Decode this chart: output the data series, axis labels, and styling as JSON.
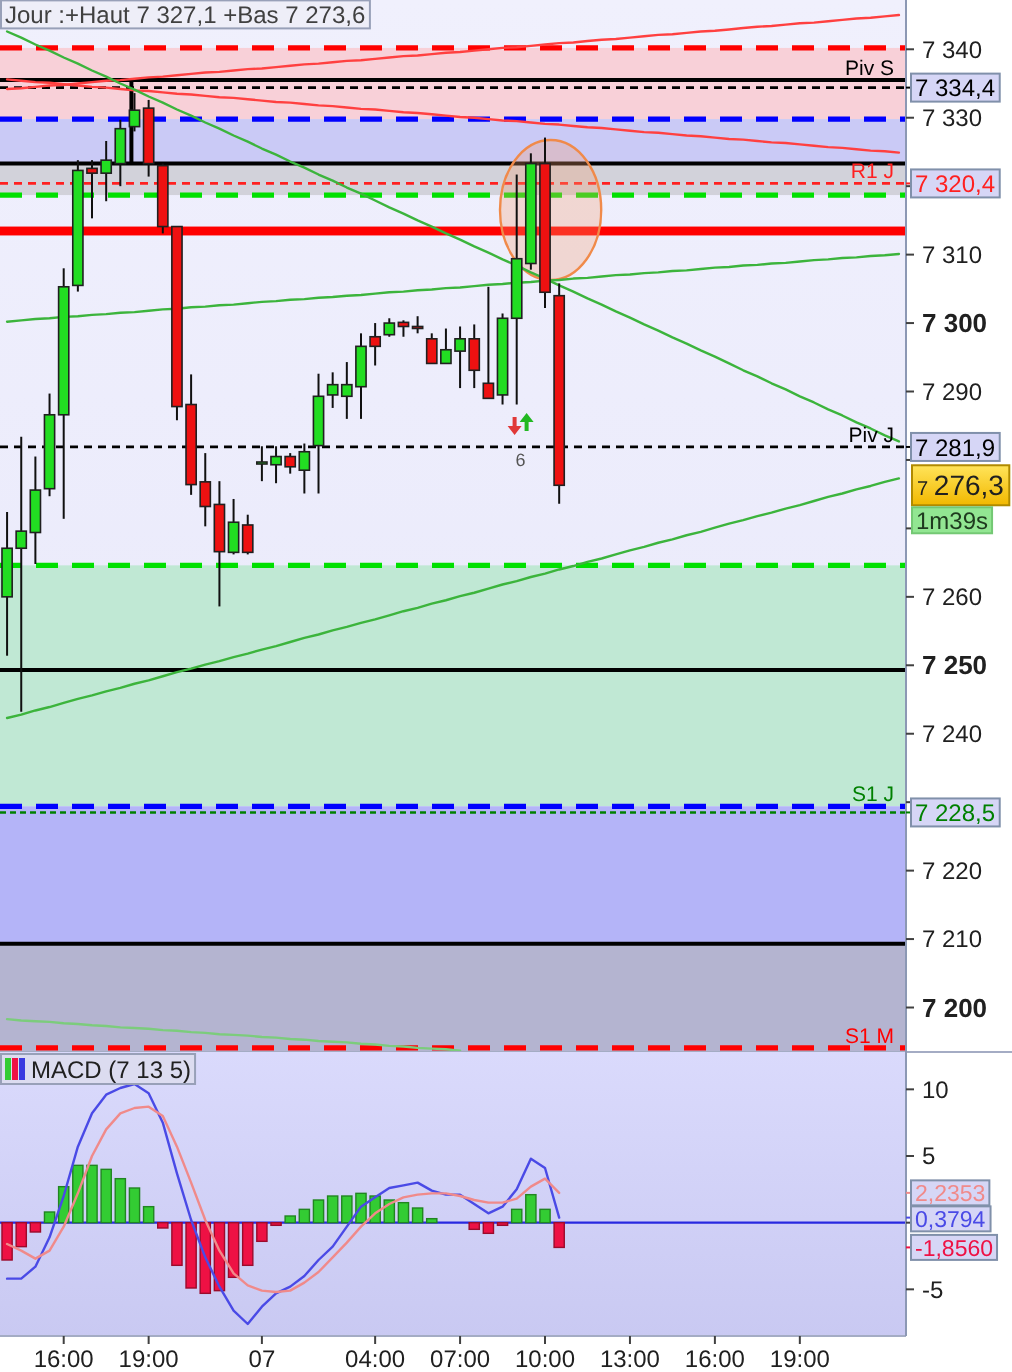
{
  "chart_data": [
    {
      "type": "candlestick",
      "title": "Jour :+Haut 7 327,1 +Bas 7 273,6",
      "categories": [
        null,
        null,
        null,
        null,
        null,
        null,
        null,
        null,
        null,
        null,
        null,
        null,
        null,
        null,
        null,
        null,
        null,
        null,
        null,
        null,
        null,
        null,
        null,
        null,
        null,
        null,
        null,
        null,
        null,
        null,
        null,
        null,
        null,
        null,
        null,
        null,
        null,
        null,
        null,
        null,
        null,
        null,
        null,
        null,
        null,
        null,
        null,
        null,
        null,
        null,
        null,
        null,
        null,
        null,
        null,
        null,
        null,
        null,
        null,
        null,
        null,
        null,
        null,
        null
      ],
      "ohlc": [
        [
          7260.0,
          7272.4,
          7251.4,
          7267.1
        ],
        [
          7267.1,
          7283.4,
          7243.2,
          7269.6
        ],
        [
          7269.4,
          7280.5,
          7264.8,
          7275.6
        ],
        [
          7275.8,
          7289.7,
          7274.7,
          7286.6
        ],
        [
          7286.6,
          7308.0,
          7271.4,
          7305.3
        ],
        [
          7305.5,
          7323.8,
          7304.6,
          7322.3
        ],
        [
          7322.6,
          7323.8,
          7315.3,
          7321.9
        ],
        [
          7321.9,
          7326.6,
          7317.8,
          7323.8
        ],
        [
          7323.3,
          7329.7,
          7320.0,
          7328.4
        ],
        [
          7328.7,
          7333.6,
          7328.0,
          7331.1
        ],
        [
          7331.4,
          7332.6,
          7321.4,
          7323.3
        ],
        [
          7323.0,
          7323.3,
          7313.1,
          7314.1
        ],
        [
          7314.1,
          7314.1,
          7285.8,
          7287.8
        ],
        [
          7288.1,
          7292.5,
          7274.9,
          7276.4
        ],
        [
          7276.8,
          7281.0,
          7270.3,
          7273.2
        ],
        [
          7273.5,
          7276.9,
          7258.6,
          7266.6
        ],
        [
          7266.5,
          7274.3,
          7266.2,
          7270.9
        ],
        [
          7270.5,
          7272.0,
          7266.2,
          7266.5
        ],
        [
          7279.7,
          7282.0,
          7276.9,
          7279.7
        ],
        [
          7279.3,
          7282.0,
          7276.6,
          7280.5
        ],
        [
          7280.5,
          7281.0,
          7278.0,
          7279.0
        ],
        [
          7278.5,
          7282.4,
          7275.1,
          7281.2
        ],
        [
          7282.1,
          7292.6,
          7275.1,
          7289.3
        ],
        [
          7289.5,
          7292.8,
          7287.6,
          7291.0
        ],
        [
          7289.3,
          7294.3,
          7286.0,
          7291.0
        ],
        [
          7290.7,
          7298.5,
          7286.0,
          7296.6
        ],
        [
          7298.0,
          7300.0,
          7293.8,
          7296.6
        ],
        [
          7298.3,
          7300.7,
          7298.0,
          7300.0
        ],
        [
          7300.1,
          7300.4,
          7298.0,
          7299.5
        ],
        [
          7299.5,
          7301.0,
          7298.5,
          7299.5
        ],
        [
          7297.7,
          7298.5,
          7294.1,
          7294.1
        ],
        [
          7294.1,
          7299.2,
          7294.1,
          7296.1
        ],
        [
          7295.9,
          7299.5,
          7290.5,
          7297.7
        ],
        [
          7297.7,
          7299.8,
          7290.5,
          7293.1
        ],
        [
          7291.2,
          7305.3,
          7289.0,
          7289.0
        ],
        [
          7289.5,
          7301.4,
          7288.1,
          7300.7
        ],
        [
          7300.7,
          7321.7,
          7288.1,
          7309.4
        ],
        [
          7308.7,
          7324.8,
          7307.8,
          7323.3
        ],
        [
          7323.3,
          7327.1,
          7302.2,
          7304.5
        ],
        [
          7304.0,
          7305.8,
          7273.6,
          7276.3
        ],
        null,
        null,
        null,
        null,
        null,
        null,
        null,
        null,
        null,
        null,
        null,
        null,
        null,
        null,
        null,
        null,
        null,
        null,
        null,
        null,
        null,
        null,
        null,
        null
      ],
      "colors": [
        "#22dd22",
        "#22dd22",
        "#22dd22",
        "#22dd22",
        "#22dd22",
        "#22dd22",
        "#ee1111",
        "#22dd22",
        "#22dd22",
        "#22dd22",
        "#ee1111",
        "#ee1111",
        "#ee1111",
        "#ee1111",
        "#ee1111",
        "#ee1111",
        "#22dd22",
        "#ee1111",
        "#22dd22",
        "#22dd22",
        "#ee1111",
        "#22dd22",
        "#22dd22",
        "#22dd22",
        "#22dd22",
        "#22dd22",
        "#ee1111",
        "#22dd22",
        "#ee1111",
        "#ee1111",
        "#ee1111",
        "#22dd22",
        "#22dd22",
        "#ee1111",
        "#ee1111",
        "#22dd22",
        "#22dd22",
        "#22dd22",
        "#ee1111",
        "#ee1111",
        null,
        null,
        null,
        null,
        null,
        null,
        null,
        null,
        null,
        null,
        null,
        null,
        null,
        null,
        null,
        null,
        null,
        null,
        null,
        null,
        null,
        null,
        null,
        null
      ],
      "series": [
        {
          "type": "line",
          "color": "#ff4040",
          "values": [
            7335.6,
            7335.4,
            7335.2,
            7335.1,
            7334.9,
            7334.7,
            7334.5,
            7334.4,
            7334.2,
            7334.0,
            7333.9,
            7333.7,
            7333.5,
            7333.4,
            7333.2,
            7333.0,
            7332.9,
            7332.7,
            7332.5,
            7332.3,
            7332.2,
            7332.0,
            7331.8,
            7331.7,
            7331.5,
            7331.3,
            7331.2,
            7331.0,
            7330.8,
            7330.7,
            7330.5,
            7330.3,
            7330.1,
            7330.0,
            7329.8,
            7329.6,
            7329.5,
            7329.3,
            7329.1,
            7329.0,
            7328.8,
            7328.6,
            7328.5,
            7328.3,
            7328.1,
            7327.9,
            7327.8,
            7327.6,
            7327.4,
            7327.3,
            7327.1,
            7326.9,
            7326.8,
            7326.6,
            7326.4,
            7326.3,
            7326.1,
            7325.9,
            7325.7,
            7325.6,
            7325.4,
            7325.2,
            7325.1,
            7324.9
          ]
        },
        {
          "type": "line",
          "color": "#ff4040",
          "values": [
            7334.2,
            7334.3,
            7334.5,
            7334.7,
            7334.8,
            7335.0,
            7335.2,
            7335.4,
            7335.5,
            7335.7,
            7335.9,
            7336.0,
            7336.2,
            7336.4,
            7336.6,
            7336.7,
            7336.9,
            7337.1,
            7337.2,
            7337.4,
            7337.6,
            7337.8,
            7337.9,
            7338.1,
            7338.3,
            7338.4,
            7338.6,
            7338.8,
            7339.0,
            7339.1,
            7339.3,
            7339.5,
            7339.6,
            7339.8,
            7340.0,
            7340.2,
            7340.3,
            7340.5,
            7340.7,
            7340.9,
            7341.0,
            7341.2,
            7341.4,
            7341.5,
            7341.7,
            7341.9,
            7342.1,
            7342.2,
            7342.4,
            7342.6,
            7342.7,
            7342.9,
            7343.1,
            7343.3,
            7343.4,
            7343.6,
            7343.8,
            7343.9,
            7344.1,
            7344.3,
            7344.5,
            7344.6,
            7344.8,
            7345.0
          ]
        },
        {
          "type": "line",
          "color": "#3cb43c",
          "values": [
            7342.6,
            7341.7,
            7340.7,
            7339.8,
            7338.8,
            7337.9,
            7336.9,
            7336.0,
            7335.0,
            7334.1,
            7333.1,
            7332.2,
            7331.2,
            7330.3,
            7329.3,
            7328.4,
            7327.4,
            7326.5,
            7325.5,
            7324.6,
            7323.6,
            7322.7,
            7321.7,
            7320.8,
            7319.8,
            7318.9,
            7317.9,
            7316.9,
            7316.0,
            7315.0,
            7314.1,
            7313.1,
            7312.2,
            7311.2,
            7310.3,
            7309.3,
            7308.4,
            7307.4,
            7306.5,
            7305.5,
            7304.6,
            7303.6,
            7302.7,
            7301.7,
            7300.8,
            7299.8,
            7298.9,
            7297.9,
            7297.0,
            7296.0,
            7295.1,
            7294.1,
            7293.1,
            7292.2,
            7291.2,
            7290.3,
            7289.3,
            7288.4,
            7287.4,
            7286.5,
            7285.5,
            7284.6,
            7283.6,
            7282.7
          ]
        },
        {
          "type": "line",
          "color": "#3cb43c",
          "values": [
            7300.2,
            7300.4,
            7300.6,
            7300.7,
            7300.9,
            7301.0,
            7301.2,
            7301.3,
            7301.5,
            7301.6,
            7301.8,
            7302.0,
            7302.1,
            7302.3,
            7302.4,
            7302.6,
            7302.7,
            7302.9,
            7303.1,
            7303.2,
            7303.4,
            7303.5,
            7303.7,
            7303.8,
            7304.0,
            7304.1,
            7304.3,
            7304.5,
            7304.6,
            7304.8,
            7304.9,
            7305.1,
            7305.2,
            7305.4,
            7305.6,
            7305.7,
            7305.9,
            7306.0,
            7306.2,
            7306.3,
            7306.5,
            7306.6,
            7306.8,
            7307.0,
            7307.1,
            7307.3,
            7307.4,
            7307.6,
            7307.7,
            7307.9,
            7308.1,
            7308.2,
            7308.4,
            7308.5,
            7308.7,
            7308.8,
            7309.0,
            7309.2,
            7309.3,
            7309.5,
            7309.6,
            7309.8,
            7309.9,
            7310.1
          ]
        },
        {
          "type": "line",
          "color": "#3cb43c",
          "values": [
            7242.3,
            7242.8,
            7243.4,
            7243.9,
            7244.5,
            7245.1,
            7245.6,
            7246.2,
            7246.7,
            7247.3,
            7247.8,
            7248.4,
            7249.0,
            7249.5,
            7250.1,
            7250.6,
            7251.2,
            7251.7,
            7252.3,
            7252.8,
            7253.4,
            7254.0,
            7254.5,
            7255.1,
            7255.6,
            7256.2,
            7256.7,
            7257.3,
            7257.9,
            7258.4,
            7259.0,
            7259.5,
            7260.1,
            7260.6,
            7261.2,
            7261.8,
            7262.3,
            7262.9,
            7263.4,
            7264.0,
            7264.5,
            7265.1,
            7265.6,
            7266.2,
            7266.8,
            7267.3,
            7267.9,
            7268.4,
            7269.0,
            7269.5,
            7270.1,
            7270.7,
            7271.2,
            7271.8,
            7272.3,
            7272.9,
            7273.4,
            7274.0,
            7274.6,
            7275.1,
            7275.7,
            7276.2,
            7276.8,
            7277.3
          ]
        },
        {
          "type": "line",
          "color": "#7ccc7c",
          "values": [
            7198.3,
            7198.1,
            7198.0,
            7197.9,
            7197.7,
            7197.6,
            7197.4,
            7197.3,
            7197.1,
            7197.0,
            7196.9,
            7196.7,
            7196.6,
            7196.4,
            7196.3,
            7196.1,
            7196.0,
            7195.9,
            7195.7,
            7195.6,
            7195.4,
            7195.3,
            7195.1,
            7195.0,
            7194.9,
            7194.7,
            7194.6,
            7194.4,
            7194.3,
            7194.1,
            7194.0,
            7193.9,
            7193.7,
            null,
            null,
            null,
            null,
            null,
            null,
            null,
            null,
            null,
            null,
            null,
            null,
            null,
            null,
            null,
            null,
            null,
            null,
            null,
            null,
            null,
            null,
            null,
            null,
            null,
            null,
            null,
            null,
            null,
            null,
            null
          ]
        }
      ],
      "bands": [
        {
          "axis": "y",
          "from": 7329.8,
          "to": 7340.2,
          "color": "#f8d0d8"
        },
        {
          "axis": "y",
          "from": 7323.3,
          "to": 7329.8,
          "color": "#cacaf6"
        },
        {
          "axis": "y",
          "from": 7318.7,
          "to": 7323.3,
          "color": "#d2d2da"
        },
        {
          "axis": "y",
          "from": 7312.8,
          "to": 7314.1,
          "color": "#ff0000"
        },
        {
          "axis": "y",
          "from": 7229.4,
          "to": 7264.6,
          "color": "#c0e8d4"
        },
        {
          "axis": "y",
          "from": 7209.3,
          "to": 7229.4,
          "color": "#b4b4f8"
        },
        {
          "axis": "y",
          "from": 7193.5,
          "to": 7209.3,
          "color": "#b4b4d0"
        }
      ],
      "ref_lines": [
        {
          "axis": "y",
          "value": 7340.2,
          "color": "#ff0000",
          "line_style": "dashed"
        },
        {
          "axis": "y",
          "value": 7335.5,
          "color": "#000000",
          "line_style": "solid"
        },
        {
          "axis": "y",
          "value": 7334.4,
          "label": "Piv S",
          "color": "#000000",
          "line_style": "dashed"
        },
        {
          "axis": "y",
          "value": 7329.8,
          "color": "#0000ff",
          "line_style": "dashed"
        },
        {
          "axis": "y",
          "value": 7323.3,
          "color": "#000000",
          "line_style": "solid"
        },
        {
          "axis": "y",
          "value": 7320.4,
          "label": "R1 J",
          "color": "#ff2020",
          "line_style": "dashed"
        },
        {
          "axis": "y",
          "value": 7318.7,
          "color": "#00e000",
          "line_style": "dashed"
        },
        {
          "axis": "y",
          "value": 7281.9,
          "label": "Piv J",
          "color": "#000000",
          "line_style": "dashed"
        },
        {
          "axis": "y",
          "value": 7264.6,
          "color": "#00e000",
          "line_style": "dashed"
        },
        {
          "axis": "y",
          "value": 7249.3,
          "color": "#000000",
          "line_style": "solid"
        },
        {
          "axis": "y",
          "value": 7229.4,
          "color": "#0000ff",
          "line_style": "dashed"
        },
        {
          "axis": "y",
          "value": 7228.5,
          "label": "S1 J",
          "color": "#008000",
          "line_style": "dotted"
        },
        {
          "axis": "y",
          "value": 7209.3,
          "color": "#000000",
          "line_style": "solid"
        },
        {
          "axis": "y",
          "value": 7194.1,
          "label": "S1 M",
          "color": "#ff0000",
          "line_style": "dashed"
        }
      ],
      "annotations": [
        "7 334,4",
        "7 320,4",
        "7 281,9",
        "7 228,5",
        "7 276,3",
        "1m39s",
        "6"
      ],
      "ylim": [
        7193.5,
        7347.2
      ],
      "yticks": [
        {
          "value": 7200,
          "label": "7 200"
        },
        {
          "value": 7210,
          "label": "7 210"
        },
        {
          "value": 7220,
          "label": "7 220"
        },
        {
          "value": 7230,
          "label": null
        },
        {
          "value": 7240,
          "label": "7 240"
        },
        {
          "value": 7250,
          "label": "7 250"
        },
        {
          "value": 7260,
          "label": "7 260"
        },
        {
          "value": 7270,
          "label": null
        },
        {
          "value": 7280,
          "label": null
        },
        {
          "value": 7290,
          "label": "7 290"
        },
        {
          "value": 7300,
          "label": "7 300"
        },
        {
          "value": 7310,
          "label": "7 310"
        },
        {
          "value": 7320,
          "label": null
        },
        {
          "value": 7330,
          "label": "7 330"
        },
        {
          "value": 7340,
          "label": "7 340"
        }
      ],
      "tick_labels": "y"
    },
    {
      "type": "bar",
      "title": "MACD (7 13 5)",
      "categories": [
        null,
        null,
        null,
        null,
        "16:00",
        null,
        null,
        null,
        null,
        null,
        "19:00",
        null,
        null,
        null,
        null,
        null,
        null,
        null,
        "07",
        null,
        null,
        null,
        null,
        null,
        null,
        null,
        "04:00",
        null,
        null,
        null,
        null,
        null,
        "07:00",
        null,
        null,
        null,
        null,
        null,
        "10:00",
        null,
        null,
        null,
        null,
        null,
        "13:00",
        null,
        null,
        null,
        null,
        null,
        "16:00",
        null,
        null,
        null,
        null,
        null,
        "19:00",
        null,
        null,
        null,
        null,
        null,
        null,
        null
      ],
      "series": [
        {
          "colors": [
            "#ee1144",
            "#ee1144",
            "#ee1144",
            "#33cc33",
            "#33cc33",
            "#33cc33",
            "#33cc33",
            "#33cc33",
            "#33cc33",
            "#33cc33",
            "#33cc33",
            "#ee1144",
            "#ee1144",
            "#ee1144",
            "#ee1144",
            "#ee1144",
            "#ee1144",
            "#ee1144",
            "#ee1144",
            "#ee1144",
            "#33cc33",
            "#33cc33",
            "#33cc33",
            "#33cc33",
            "#33cc33",
            "#33cc33",
            "#33cc33",
            "#33cc33",
            "#33cc33",
            "#33cc33",
            "#33cc33",
            null,
            null,
            "#ee1144",
            "#ee1144",
            "#ee1144",
            "#33cc33",
            "#33cc33",
            "#33cc33",
            "#ee1144",
            null,
            null,
            null,
            null,
            null,
            null,
            null,
            null,
            null,
            null,
            null,
            null,
            null,
            null,
            null,
            null,
            null,
            null,
            null,
            null,
            null,
            null,
            null,
            null
          ],
          "values": [
            -2.8,
            -1.8,
            -0.7,
            0.8,
            2.7,
            4.3,
            4.3,
            4.0,
            3.3,
            2.6,
            1.2,
            -0.4,
            -3.2,
            -4.9,
            -5.3,
            -5.1,
            -4.1,
            -3.2,
            -1.4,
            -0.2,
            0.5,
            1.0,
            1.7,
            2.0,
            2.0,
            2.2,
            2.0,
            1.7,
            1.5,
            1.1,
            0.3,
            null,
            null,
            -0.5,
            -0.8,
            -0.2,
            1.0,
            2.1,
            1.0,
            -1.856,
            null,
            null,
            null,
            null,
            null,
            null,
            null,
            null,
            null,
            null,
            null,
            null,
            null,
            null,
            null,
            null,
            null,
            null,
            null,
            null,
            null,
            null,
            null,
            null
          ]
        },
        {
          "type": "line",
          "color": "#4a4ae6",
          "values": [
            -4.2,
            -4.2,
            -3.3,
            -1.1,
            2.0,
            5.7,
            8.2,
            9.6,
            10.1,
            10.4,
            9.7,
            7.5,
            3.7,
            0.2,
            -2.6,
            -4.8,
            -6.6,
            -7.6,
            -6.3,
            -5.3,
            -4.8,
            -4.0,
            -2.8,
            -1.8,
            -0.3,
            1.2,
            1.9,
            2.6,
            2.8,
            3.0,
            2.4,
            2.1,
            2.1,
            1.4,
            0.7,
            1.2,
            2.5,
            4.8,
            4.1,
            0.3794,
            null,
            null,
            null,
            null,
            null,
            null,
            null,
            null,
            null,
            null,
            null,
            null,
            null,
            null,
            null,
            null,
            null,
            null,
            null,
            null,
            null,
            null,
            null,
            null
          ]
        },
        {
          "type": "line",
          "color": "#f08a8a",
          "values": [
            -1.6,
            -2.1,
            -2.7,
            -2.1,
            -0.3,
            2.2,
            5.0,
            7.0,
            8.2,
            8.6,
            8.7,
            8.0,
            5.7,
            3.0,
            0.2,
            -2.1,
            -3.8,
            -4.7,
            -5.1,
            -5.2,
            -5.1,
            -4.5,
            -3.7,
            -2.6,
            -1.5,
            -0.3,
            0.7,
            1.4,
            1.9,
            2.1,
            2.2,
            2.2,
            2.0,
            1.7,
            1.5,
            1.5,
            1.8,
            2.7,
            3.3,
            2.2353,
            null,
            null,
            null,
            null,
            null,
            null,
            null,
            null,
            null,
            null,
            null,
            null,
            null,
            null,
            null,
            null,
            null,
            null,
            null,
            null,
            null,
            null,
            null,
            null
          ]
        }
      ],
      "ref_lines": [
        {
          "axis": "y",
          "value": 0,
          "color": "#2828e0",
          "line_style": "solid"
        }
      ],
      "annotations": [
        "-1,8560",
        "0,3794",
        "2,2353"
      ],
      "ylim": [
        -8.5,
        12.8
      ],
      "yticks": [
        -5,
        {
          "value": 0,
          "label": null
        },
        5,
        10
      ]
    }
  ]
}
